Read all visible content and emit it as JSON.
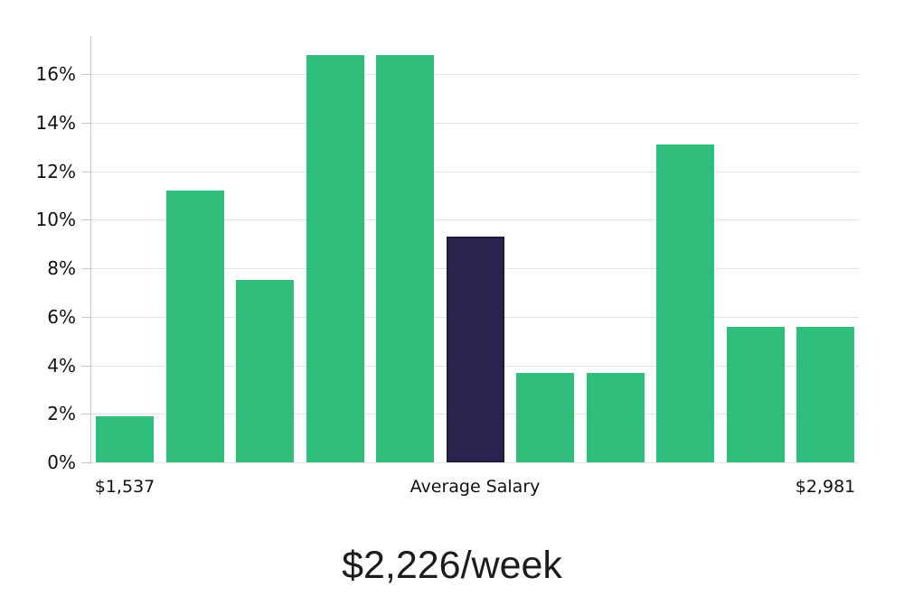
{
  "chart_data": {
    "type": "bar",
    "subtype": "histogram",
    "title": "$2,226/week",
    "values": [
      1.9,
      11.2,
      7.5,
      16.8,
      16.8,
      9.3,
      3.7,
      3.7,
      13.1,
      5.6,
      5.6
    ],
    "value_unit": "%",
    "highlight_index": 5,
    "y_ticks": [
      0,
      2,
      4,
      6,
      8,
      10,
      12,
      14,
      16
    ],
    "y_tick_suffix": "%",
    "ylim": [
      0,
      17.6
    ],
    "x_tick_labels": [
      {
        "label": "$1,537",
        "bar_index": 0
      },
      {
        "label": "Average Salary",
        "bar_index": 5
      },
      {
        "label": "$2,981",
        "bar_index": 10
      }
    ],
    "grid": true,
    "legend_position": "none",
    "colors": {
      "bar": "#2ebd7b",
      "highlight_bar": "#292350",
      "highlight_border": "#1e1a3e",
      "gridline": "#e3e3e3",
      "axis": "#c8c8c8",
      "tick_text": "#111111",
      "title_text": "#1c1c1c",
      "background": "#ffffff"
    }
  }
}
